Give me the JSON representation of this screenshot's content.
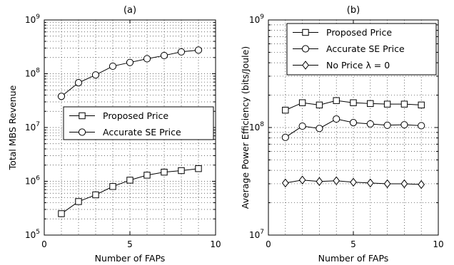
{
  "chart_data": [
    {
      "type": "line",
      "title": "(a)",
      "xlabel": "Number of FAPs",
      "ylabel": "Total MBS Revenue",
      "xlim": [
        0,
        10
      ],
      "ylim": [
        100000,
        1000000000
      ],
      "yscale": "log",
      "grid": true,
      "legend_position": "center-right",
      "x_ticks": [
        0,
        5,
        10
      ],
      "y_ticks": [
        {
          "base": "10",
          "exp": "5",
          "value": 100000
        },
        {
          "base": "10",
          "exp": "6",
          "value": 1000000
        },
        {
          "base": "10",
          "exp": "7",
          "value": 10000000
        },
        {
          "base": "10",
          "exp": "8",
          "value": 100000000
        },
        {
          "base": "10",
          "exp": "9",
          "value": 1000000000
        }
      ],
      "x": [
        1,
        2,
        3,
        4,
        5,
        6,
        7,
        8,
        9
      ],
      "series": [
        {
          "name": "Proposed Price",
          "marker": "square",
          "values": [
            250000,
            420000,
            560000,
            800000,
            1050000,
            1300000,
            1480000,
            1580000,
            1720000
          ]
        },
        {
          "name": "Accurate SE Price",
          "marker": "circle",
          "values": [
            38000000,
            68000000,
            95000000,
            138000000,
            162000000,
            190000000,
            218000000,
            255000000,
            275000000
          ]
        }
      ]
    },
    {
      "type": "line",
      "title": "(b)",
      "xlabel": "Number of FAPs",
      "ylabel": "Average Power Efficiency (bits/Joule)",
      "xlim": [
        0,
        10
      ],
      "ylim": [
        10000000,
        1000000000
      ],
      "yscale": "log",
      "grid": true,
      "legend_position": "top-right",
      "x_ticks": [
        0,
        5,
        10
      ],
      "y_ticks": [
        {
          "base": "10",
          "exp": "7",
          "value": 10000000
        },
        {
          "base": "10",
          "exp": "8",
          "value": 100000000
        },
        {
          "base": "10",
          "exp": "9",
          "value": 1000000000
        }
      ],
      "x": [
        1,
        2,
        3,
        4,
        5,
        6,
        7,
        8,
        9
      ],
      "series": [
        {
          "name": "Proposed Price",
          "marker": "square",
          "values": [
            145000000,
            170000000,
            162000000,
            178000000,
            170000000,
            167000000,
            165000000,
            165000000,
            162000000
          ]
        },
        {
          "name": "Accurate SE Price",
          "marker": "circle",
          "values": [
            81000000,
            103000000,
            98000000,
            120000000,
            111000000,
            108000000,
            105000000,
            106000000,
            104000000
          ]
        },
        {
          "name": "No Price λ = 0",
          "marker": "diamond",
          "values": [
            30500000,
            32500000,
            31500000,
            32000000,
            31000000,
            30500000,
            30000000,
            30000000,
            29500000
          ]
        }
      ]
    }
  ]
}
